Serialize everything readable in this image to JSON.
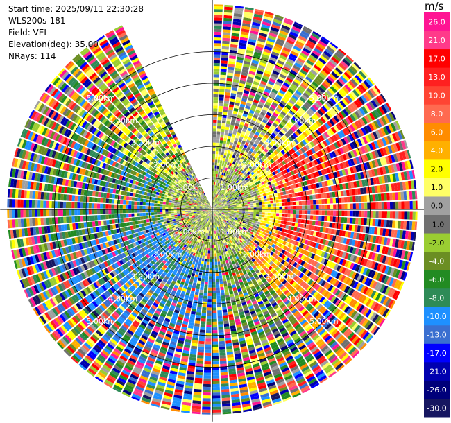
{
  "header": {
    "start_time": "Start time: 2025/09/11 22:30:28",
    "instrument": "WLS200s-181",
    "field": "Field: VEL",
    "elevation": "Elevation(deg): 35.00",
    "nrays": "NRays: 114"
  },
  "chart_data": {
    "type": "heatmap",
    "projection": "polar-ppi",
    "field": "VEL",
    "units": "m/s",
    "elevation_deg": 35.0,
    "n_rays": 114,
    "range_rings_km": [
      1,
      2,
      3,
      4,
      5
    ],
    "ring_labels": [
      "1.00km",
      "2.00km",
      "3.00km",
      "4.00km",
      "5.00km"
    ],
    "max_range_km": 6.5,
    "gap_azimuth_deg": [
      334,
      360
    ],
    "colorbar": {
      "unit": "m/s",
      "labels": [
        "26.0",
        "21.0",
        "17.0",
        "13.0",
        "10.0",
        "8.0",
        "6.0",
        "4.0",
        "2.0",
        "1.0",
        "0.0",
        "-1.0",
        "-2.0",
        "-4.0",
        "-6.0",
        "-8.0",
        "-10.0",
        "-13.0",
        "-17.0",
        "-21.0",
        "-26.0",
        "-30.0"
      ],
      "colors": [
        "#ff1493",
        "#ff3a8a",
        "#ff0000",
        "#ff2020",
        "#ff4433",
        "#ff6a50",
        "#ff8c00",
        "#ffb000",
        "#ffff00",
        "#ffff66",
        "#a0a0a0",
        "#707070",
        "#9acd32",
        "#6b8e23",
        "#228b22",
        "#2e8b57",
        "#1e90ff",
        "#3a6fd0",
        "#0000ff",
        "#0000b0",
        "#00007a",
        "#161660"
      ]
    },
    "velocity_regions": [
      {
        "az_from": 50,
        "az_to": 110,
        "r_from": 2.2,
        "r_to": 6.5,
        "class": "10.0 to 21.0"
      },
      {
        "az_from": 100,
        "az_to": 135,
        "r_from": 2.5,
        "r_to": 5.5,
        "class": "2.0 to 8.0"
      },
      {
        "az_from": 60,
        "az_to": 110,
        "r_from": 0.3,
        "r_to": 2.2,
        "class": "1.0 to 4.0"
      },
      {
        "az_from": 140,
        "az_to": 170,
        "r_from": 1.5,
        "r_to": 6.5,
        "class": "-6.0 to -2.0"
      },
      {
        "az_from": 170,
        "az_to": 255,
        "r_from": 1.5,
        "r_to": 6.5,
        "class": "-13.0 to -8.0"
      },
      {
        "az_from": 255,
        "az_to": 300,
        "r_from": 1.5,
        "r_to": 5.0,
        "class": "-8.0 to -4.0"
      },
      {
        "az_from": 300,
        "az_to": 334,
        "r_from": 2.5,
        "r_to": 6.5,
        "class": "-6.0 to 4.0"
      },
      {
        "az_from": 0,
        "az_to": 360,
        "r_from": 0.0,
        "r_to": 1.5,
        "class": "-2.0 to 1.0"
      }
    ]
  }
}
